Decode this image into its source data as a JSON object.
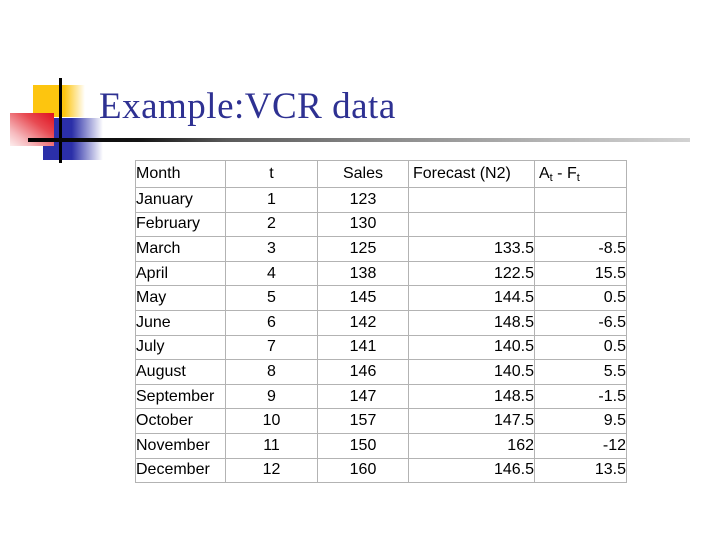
{
  "title": "Example:VCR data",
  "colors": {
    "title_text": "#2e3192",
    "decoration_yellow": "#fdc50f",
    "decoration_red": "#df0f1e",
    "decoration_blue": "#2b2fa8",
    "table_border": "#b3b3b3",
    "table_text": "#000000"
  },
  "table": {
    "headers": {
      "month": "Month",
      "t": "t",
      "sales": "Sales",
      "forecast": "Forecast (N2)",
      "error_a": "A",
      "error_sub1": "t",
      "error_mid": " - F",
      "error_sub2": "t"
    },
    "rows": [
      {
        "month": "January",
        "t": "1",
        "sales": "123",
        "forecast": "",
        "error": ""
      },
      {
        "month": "February",
        "t": "2",
        "sales": "130",
        "forecast": "",
        "error": ""
      },
      {
        "month": "March",
        "t": "3",
        "sales": "125",
        "forecast": "133.5",
        "error": "-8.5"
      },
      {
        "month": "April",
        "t": "4",
        "sales": "138",
        "forecast": "122.5",
        "error": "15.5"
      },
      {
        "month": "May",
        "t": "5",
        "sales": "145",
        "forecast": "144.5",
        "error": "0.5"
      },
      {
        "month": "June",
        "t": "6",
        "sales": "142",
        "forecast": "148.5",
        "error": "-6.5"
      },
      {
        "month": "July",
        "t": "7",
        "sales": "141",
        "forecast": "140.5",
        "error": "0.5"
      },
      {
        "month": "August",
        "t": "8",
        "sales": "146",
        "forecast": "140.5",
        "error": "5.5"
      },
      {
        "month": "September",
        "t": "9",
        "sales": "147",
        "forecast": "148.5",
        "error": "-1.5"
      },
      {
        "month": "October",
        "t": "10",
        "sales": "157",
        "forecast": "147.5",
        "error": "9.5"
      },
      {
        "month": "November",
        "t": "11",
        "sales": "150",
        "forecast": "162",
        "error": "-12"
      },
      {
        "month": "December",
        "t": "12",
        "sales": "160",
        "forecast": "146.5",
        "error": "13.5"
      }
    ]
  }
}
